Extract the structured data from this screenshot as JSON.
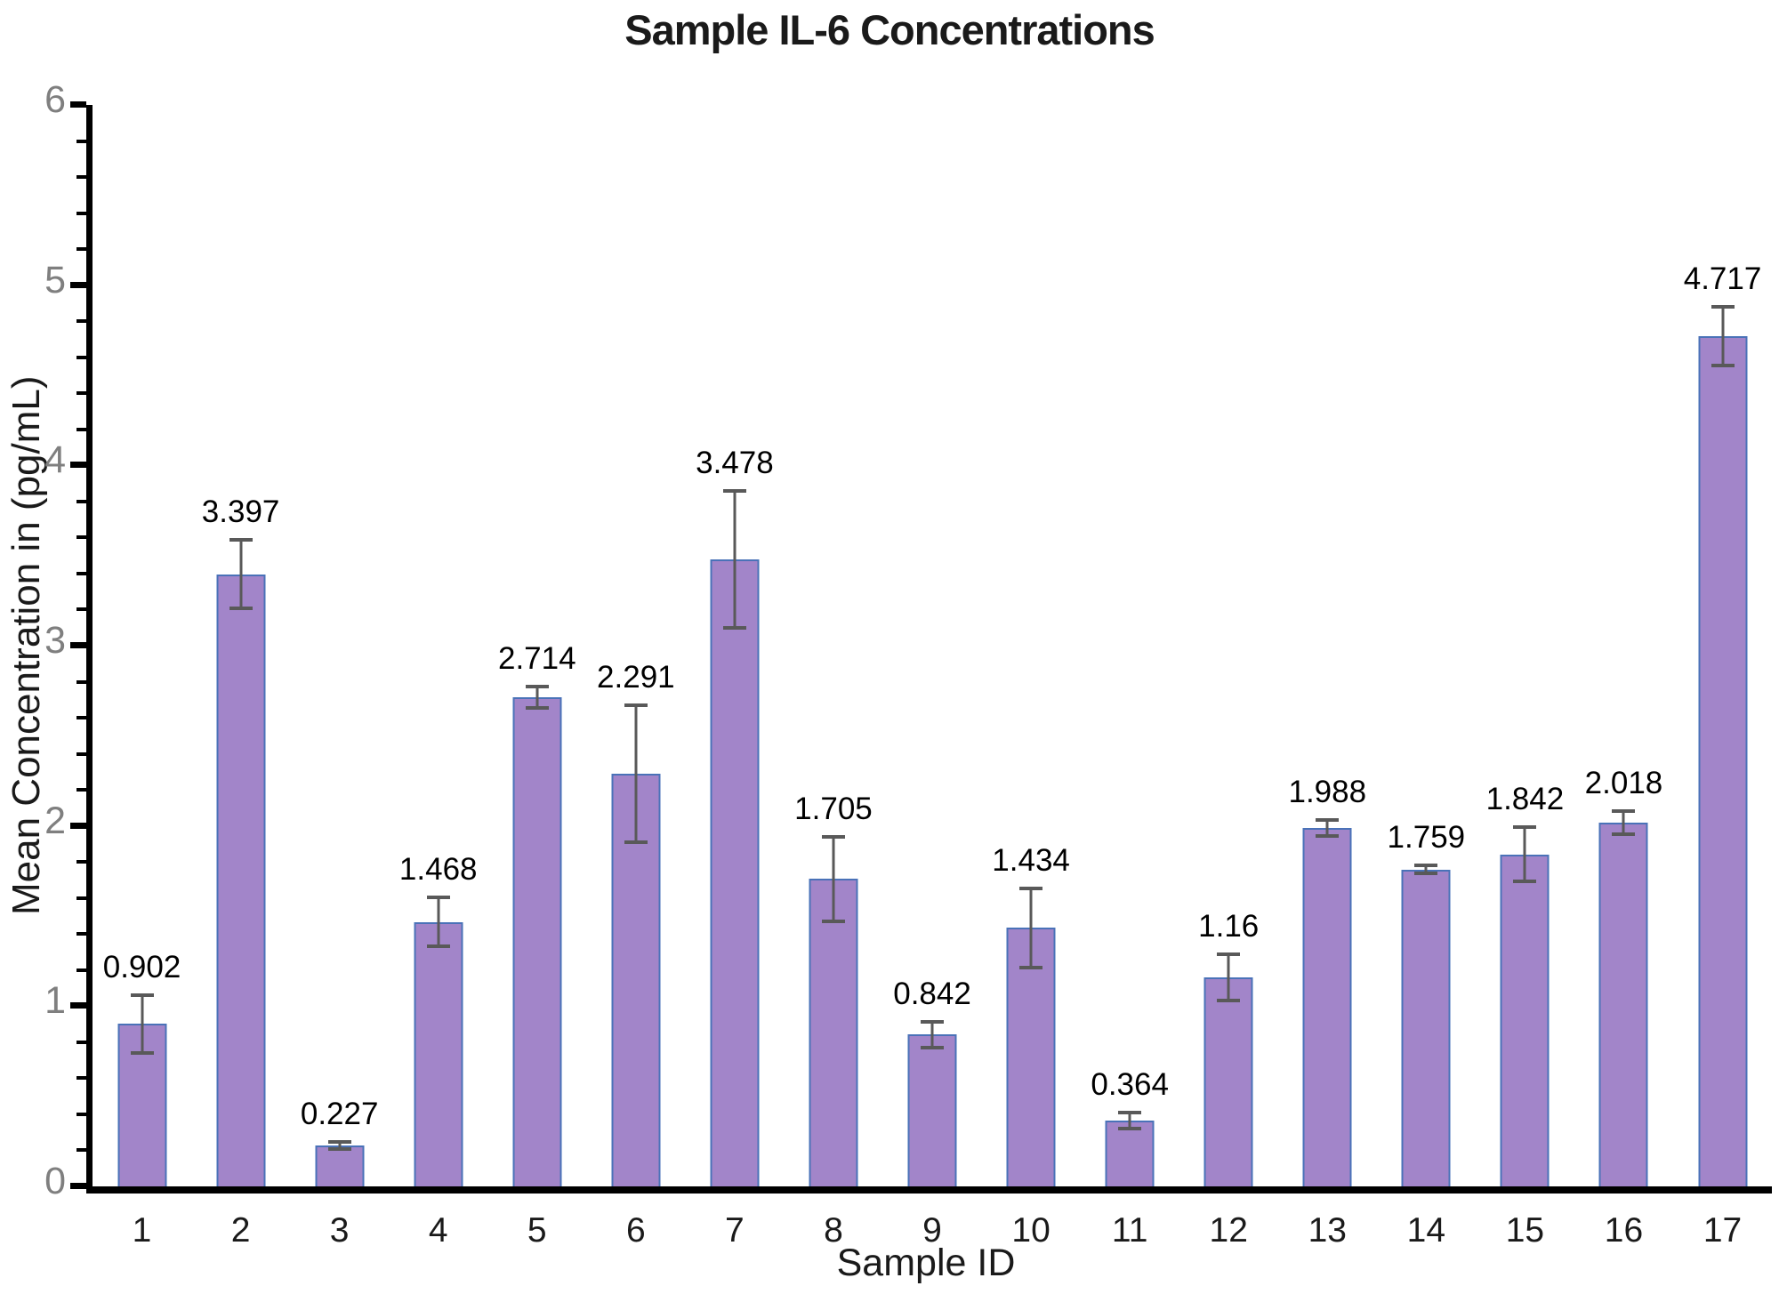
{
  "title": "Sample IL-6 Concentrations",
  "chart_data": {
    "type": "bar",
    "title": "Sample IL-6 Concentrations",
    "xlabel": "Sample ID",
    "ylabel": "Mean Concentration in (pg/mL)",
    "categories": [
      "1",
      "2",
      "3",
      "4",
      "5",
      "6",
      "7",
      "8",
      "9",
      "10",
      "11",
      "12",
      "13",
      "14",
      "15",
      "16",
      "17"
    ],
    "values": [
      0.902,
      3.397,
      0.227,
      1.468,
      2.714,
      2.291,
      3.478,
      1.705,
      0.842,
      1.434,
      0.364,
      1.16,
      1.988,
      1.759,
      1.842,
      2.018,
      4.717
    ],
    "value_labels": [
      "0.902",
      "3.397",
      "0.227",
      "1.468",
      "2.714",
      "2.291",
      "3.478",
      "1.705",
      "0.842",
      "1.434",
      "0.364",
      "1.16",
      "1.988",
      "1.759",
      "1.842",
      "2.018",
      "4.717"
    ],
    "error_bars": [
      0.16,
      0.19,
      0.02,
      0.135,
      0.06,
      0.38,
      0.38,
      0.235,
      0.07,
      0.22,
      0.045,
      0.13,
      0.045,
      0.02,
      0.15,
      0.065,
      0.165
    ],
    "ylim": [
      0,
      6
    ],
    "y_major_ticks": [
      "0",
      "1",
      "2",
      "3",
      "4",
      "5",
      "6"
    ],
    "y_minor_step": 0.2,
    "grid": "off",
    "legend": "none",
    "colors": {
      "bar_fill": "#a285c9",
      "bar_border": "#4a72b8",
      "error_bar": "#595959",
      "axis": "#000000",
      "y_tick_label": "#7f7f7f",
      "text": "#1a1a1a"
    }
  }
}
